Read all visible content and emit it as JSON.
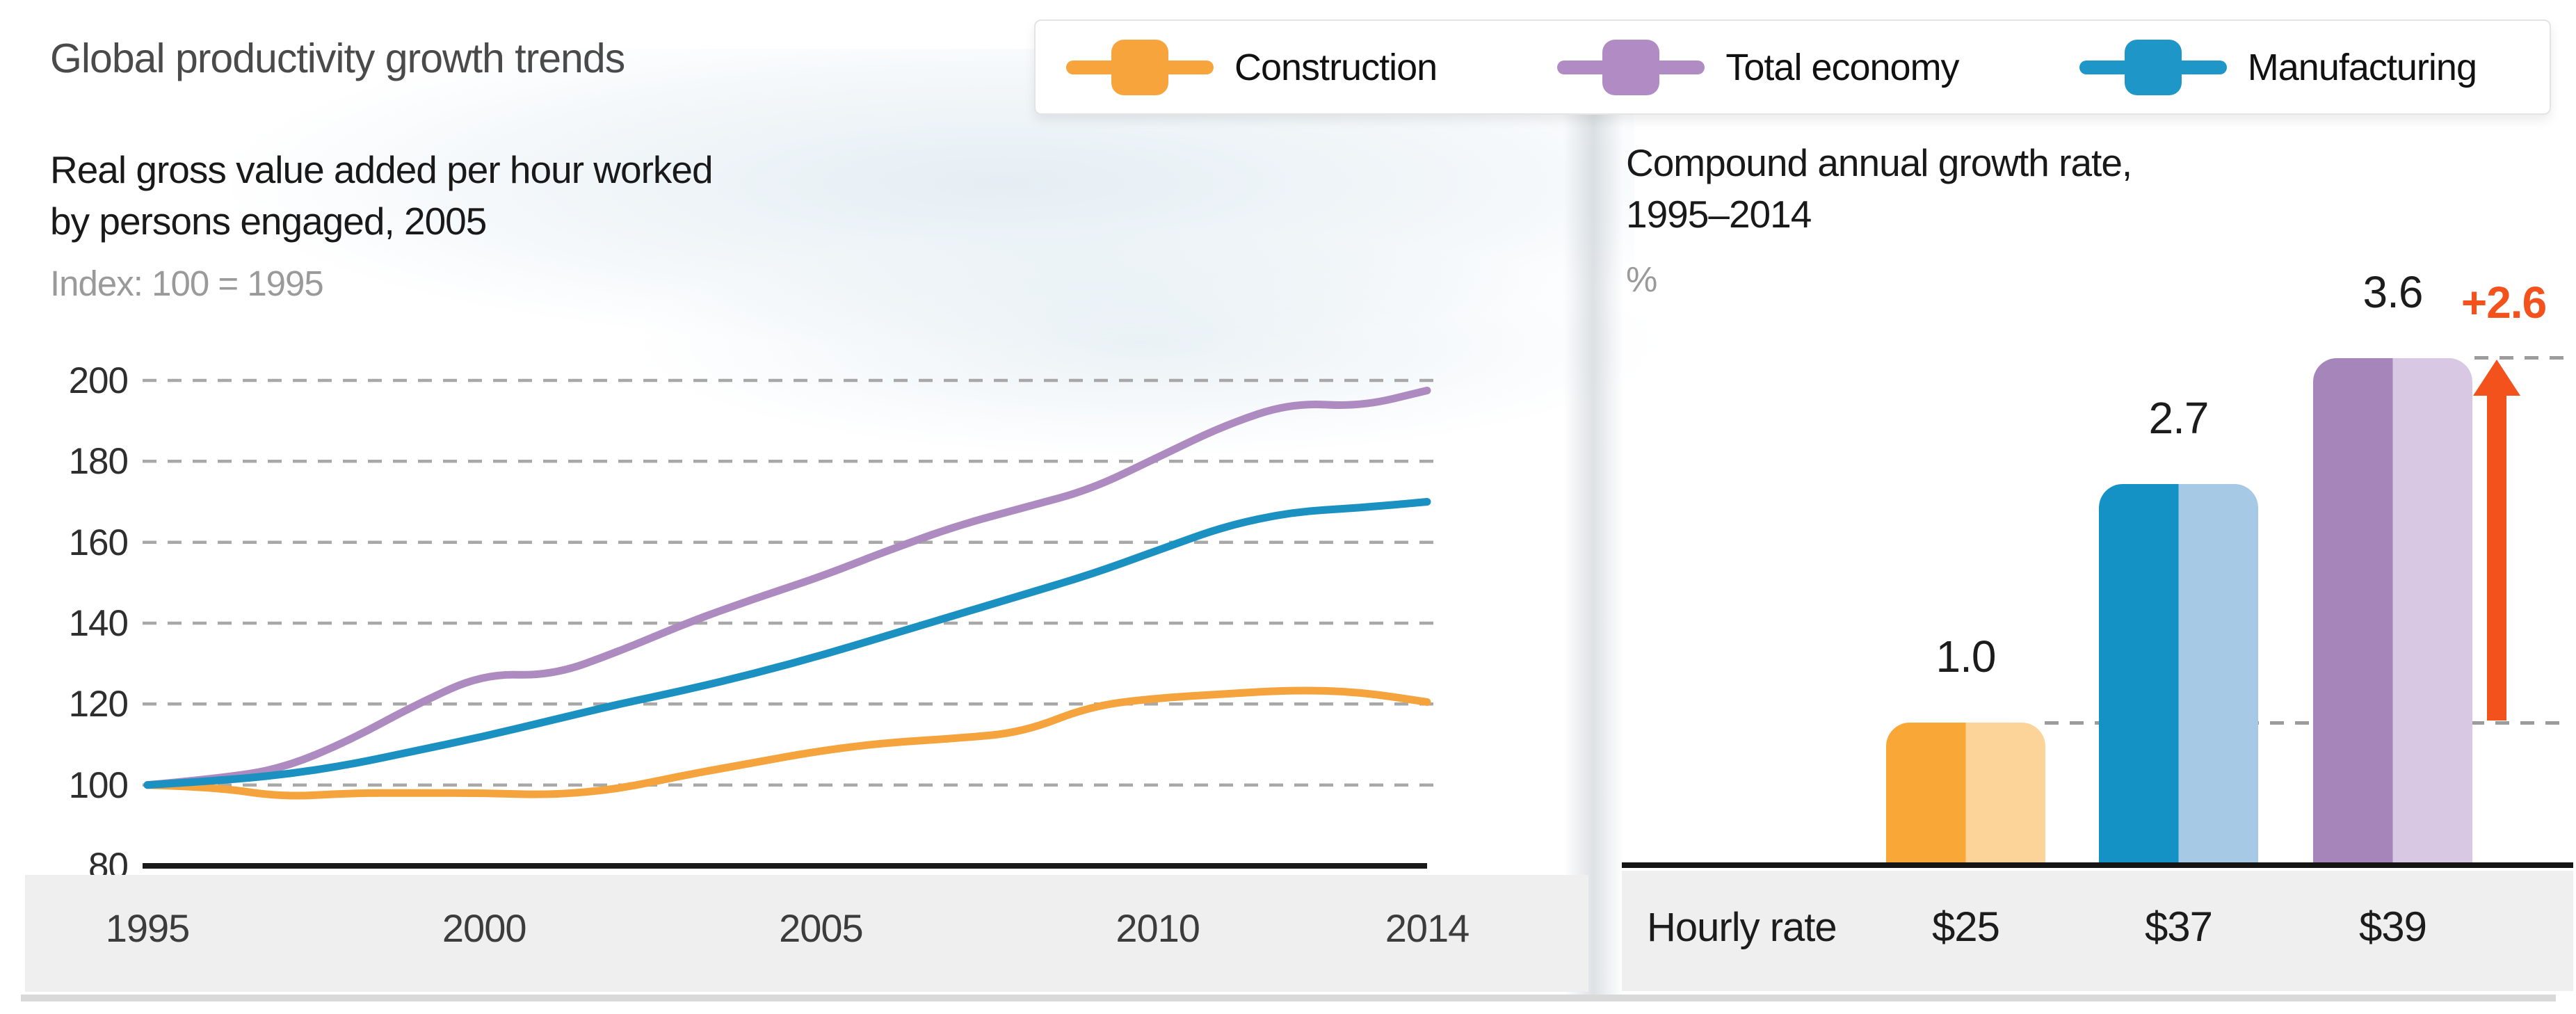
{
  "header": {
    "title": "Global productivity growth trends"
  },
  "legend": {
    "items": [
      {
        "label": "Construction",
        "color": "#F8A43C"
      },
      {
        "label": "Total economy",
        "color": "#B18CC4"
      },
      {
        "label": "Manufacturing",
        "color": "#1E96C8"
      }
    ]
  },
  "left_chart": {
    "subtitle_line1": "Real gross value added per hour worked",
    "subtitle_line2": "by persons engaged, 2005",
    "index_label": "Index: 100 = 1995",
    "y_tick_labels": [
      "200",
      "180",
      "160",
      "140",
      "120",
      "100",
      "80"
    ],
    "x_tick_labels": [
      "1995",
      "2000",
      "2005",
      "2010",
      "2014"
    ]
  },
  "right_chart": {
    "title_line1": "Compound annual growth rate,",
    "title_line2": "1995–2014",
    "unit_label": "%",
    "hourly_rate_label": "Hourly rate",
    "delta_label": "+2.6",
    "delta_color": "#F4521C"
  },
  "chart_data": [
    {
      "type": "line",
      "title": "Real gross value added per hour worked by persons engaged, 2005",
      "subtitle": "Index: 100 = 1995",
      "x": [
        1995,
        1996,
        1997,
        1998,
        1999,
        2000,
        2001,
        2002,
        2003,
        2004,
        2005,
        2006,
        2007,
        2008,
        2009,
        2010,
        2011,
        2012,
        2013,
        2014
      ],
      "x_axis_labels": [
        1995,
        2000,
        2005,
        2010,
        2014
      ],
      "ylim": [
        80,
        200
      ],
      "y_gridlines": [
        100,
        120,
        140,
        160,
        180,
        200
      ],
      "grid": "dashed",
      "legend_position": "top",
      "series": [
        {
          "name": "Total economy",
          "color": "#AD8BC1",
          "values": [
            100,
            101.5,
            104,
            111,
            120,
            127.5,
            127,
            133,
            140,
            146,
            151.5,
            158,
            164,
            168.5,
            173,
            181,
            189,
            194.5,
            193.5,
            197.5
          ]
        },
        {
          "name": "Construction",
          "color": "#F5A33C",
          "values": [
            100,
            99.5,
            97,
            98,
            98,
            98,
            97.5,
            99,
            102.5,
            105.5,
            108.5,
            110.5,
            111.5,
            113,
            119.5,
            121.5,
            122.5,
            123.5,
            123,
            120.5
          ]
        },
        {
          "name": "Manufacturing",
          "color": "#1B91C2",
          "values": [
            100,
            101,
            102.5,
            105,
            108.5,
            112,
            116,
            120,
            123.5,
            127.5,
            132,
            137,
            142,
            147,
            152,
            158,
            164,
            167.5,
            168.5,
            170
          ]
        }
      ]
    },
    {
      "type": "bar",
      "title": "Compound annual growth rate, 1995–2014",
      "ylabel": "%",
      "categories": [
        "Construction",
        "Manufacturing",
        "Total economy"
      ],
      "values": [
        1.0,
        2.7,
        3.6
      ],
      "value_labels": [
        "1.0",
        "2.7",
        "3.6"
      ],
      "colors_dark": [
        "#F9A838",
        "#1492C6",
        "#A685BB"
      ],
      "colors_light": [
        "#FCD49A",
        "#A6CAE6",
        "#D9C8E4"
      ],
      "hourly_rates": [
        "$25",
        "$37",
        "$39"
      ],
      "annotation": {
        "label": "+2.6",
        "from": 1.0,
        "to": 3.6,
        "color": "#F4521C"
      }
    }
  ]
}
